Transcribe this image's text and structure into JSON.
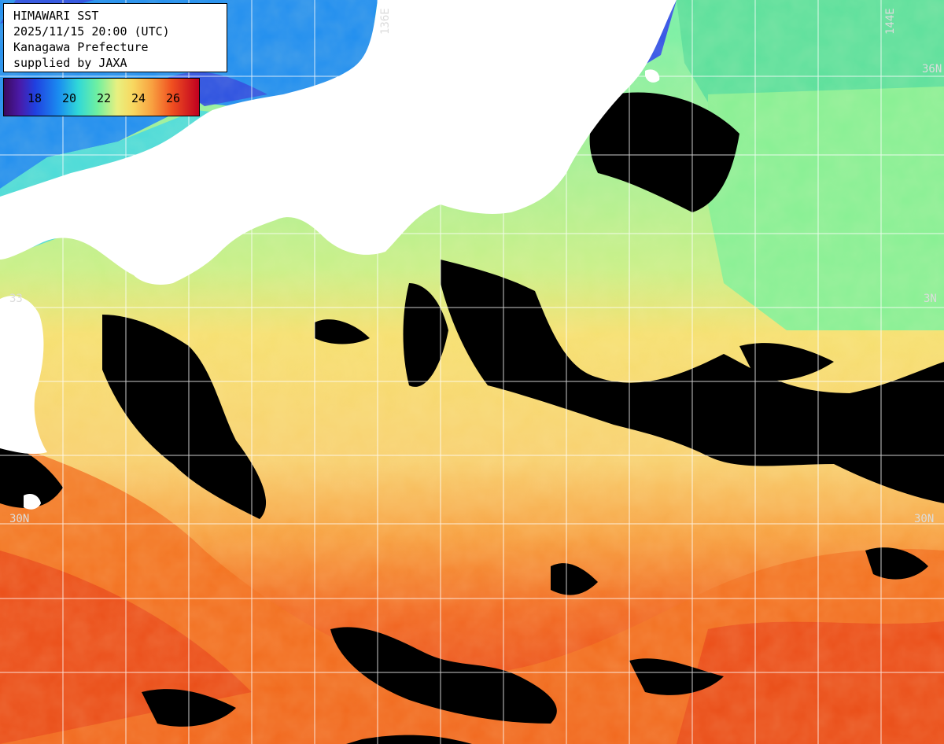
{
  "header": {
    "line1": "HIMAWARI SST",
    "line2": "2025/11/15 20:00 (UTC)",
    "line3": "Kanagawa Prefecture",
    "line4": "supplied by JAXA"
  },
  "colorbar": {
    "ticks": [
      "18",
      "20",
      "22",
      "24",
      "26"
    ]
  },
  "grid_labels": {
    "lon_136": "136E",
    "lon_144": "144E",
    "lat_36": "36N",
    "lat_33_left": "33",
    "lat_33_right": "3N",
    "lat_30_left": "30N",
    "lat_30_right": "30N"
  },
  "colors": {
    "land": "#ffffff",
    "cloud": "#000000",
    "cold_sea": "#2a6af0",
    "cool_sea": "#78f0a0",
    "warm_sea": "#f8e07a",
    "hot_sea": "#f05a1a",
    "grid": "#ffffff"
  }
}
